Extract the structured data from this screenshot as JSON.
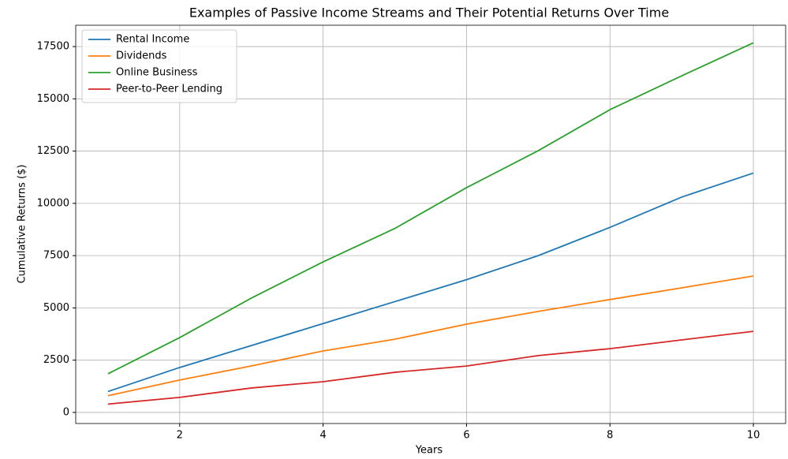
{
  "chart_data": {
    "type": "line",
    "title": "Examples of Passive Income Streams and Their Potential Returns Over Time",
    "xlabel": "Years",
    "ylabel": "Cumulative Returns ($)",
    "x": [
      1,
      2,
      3,
      4,
      5,
      6,
      7,
      8,
      9,
      10
    ],
    "series": [
      {
        "name": "Rental Income",
        "color": "#1f77b4",
        "values": [
          1000,
          2150,
          3200,
          4250,
          5300,
          6350,
          7500,
          8850,
          10300,
          11450
        ]
      },
      {
        "name": "Dividends",
        "color": "#ff7f0e",
        "values": [
          800,
          1550,
          2225,
          2940,
          3500,
          4225,
          4830,
          5400,
          5960,
          6525
        ]
      },
      {
        "name": "Online Business",
        "color": "#2ca02c",
        "values": [
          1850,
          3580,
          5470,
          7200,
          8800,
          10750,
          12520,
          14480,
          16100,
          17680
        ]
      },
      {
        "name": "Peer-to-Peer Lending",
        "color": "#d62728",
        "values": [
          400,
          720,
          1170,
          1470,
          1920,
          2220,
          2720,
          3050,
          3470,
          3880
        ]
      }
    ],
    "xlim": [
      0.55,
      10.45
    ],
    "ylim": [
      -530,
      18520
    ],
    "xticks": [
      2,
      4,
      6,
      8,
      10
    ],
    "yticks": [
      0,
      2500,
      5000,
      7500,
      10000,
      12500,
      15000,
      17500
    ],
    "grid": true,
    "legend": "upper left"
  }
}
